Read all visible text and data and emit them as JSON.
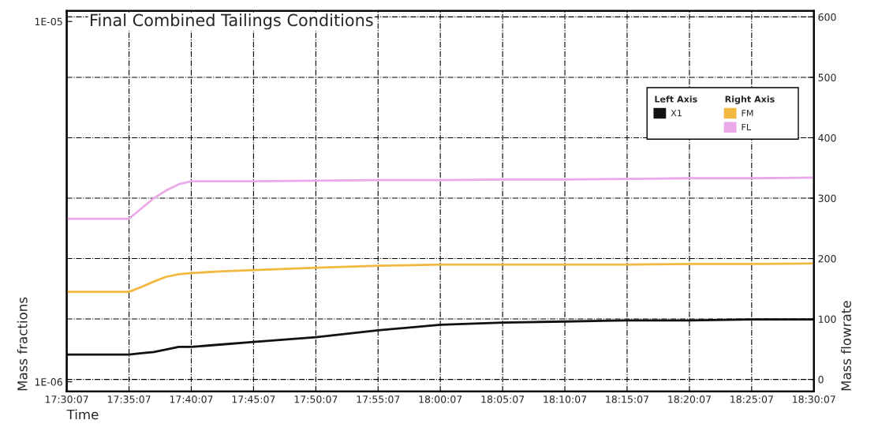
{
  "chart_data": {
    "type": "line",
    "title": "Final Combined Tailings Conditions",
    "xlabel": "Time",
    "ylabel": "Mass fractions",
    "y2label": "Mass flowrate",
    "annotations": [
      "Left Axis",
      "Right Axis"
    ],
    "x": [
      17.5019,
      17.5853,
      17.6019,
      17.6186,
      17.6353,
      17.6519,
      17.6686,
      17.7103,
      17.7519,
      17.8353,
      17.9186,
      18.0019,
      18.0853,
      18.1686,
      18.2519,
      18.3353,
      18.4186,
      18.5019
    ],
    "series": [
      {
        "name": "X1",
        "color": "#111111",
        "values": [
          1.19e-06,
          1.19e-06,
          1.2e-06,
          1.21e-06,
          1.23e-06,
          1.25e-06,
          1.25e-06,
          1.27e-06,
          1.29e-06,
          1.33e-06,
          1.39e-06,
          1.44e-06,
          1.46e-06,
          1.47e-06,
          1.48e-06,
          1.48e-06,
          1.49e-06,
          1.49e-06
        ]
      },
      {
        "name": "FM",
        "color": "#f2b840",
        "axis": "y2",
        "values": [
          145,
          145,
          153,
          162,
          170,
          174,
          176,
          179,
          181,
          185,
          188,
          190,
          190,
          190,
          190,
          191,
          191,
          192
        ]
      },
      {
        "name": "FL",
        "color": "#eaaaea",
        "axis": "y2",
        "values": [
          266,
          266,
          283,
          300,
          313,
          323,
          328,
          328,
          328,
          329,
          330,
          330,
          331,
          331,
          332,
          333,
          333,
          334
        ]
      }
    ],
    "xlim": [
      17.5019,
      18.5019
    ],
    "xticks": [
      {
        "value": 17.5019,
        "label": "17:30:07"
      },
      {
        "value": 17.5853,
        "label": "17:35:07"
      },
      {
        "value": 17.6686,
        "label": "17:40:07"
      },
      {
        "value": 17.7519,
        "label": "17:45:07"
      },
      {
        "value": 17.8353,
        "label": "17:50:07"
      },
      {
        "value": 17.9186,
        "label": "17:55:07"
      },
      {
        "value": 18.0019,
        "label": "18:00:07"
      },
      {
        "value": 18.0853,
        "label": "18:05:07"
      },
      {
        "value": 18.1686,
        "label": "18:10:07"
      },
      {
        "value": 18.2519,
        "label": "18:15:07"
      },
      {
        "value": 18.3353,
        "label": "18:20:07"
      },
      {
        "value": 18.4186,
        "label": "18:25:07"
      },
      {
        "value": 18.5019,
        "label": "18:30:07"
      }
    ],
    "log": "y",
    "ylim": [
      9.4e-07,
      1.07e-05
    ],
    "yticks": [
      {
        "value": 1e-06,
        "label": "1E-06"
      },
      {
        "value": 1e-05,
        "label": "1E-05"
      }
    ],
    "y2lim": [
      -20,
      610
    ],
    "y2ticks": [
      0,
      100,
      200,
      300,
      400,
      500,
      600
    ],
    "grid": true,
    "legend": "top right",
    "marker": "none",
    "line_style": "solid"
  }
}
